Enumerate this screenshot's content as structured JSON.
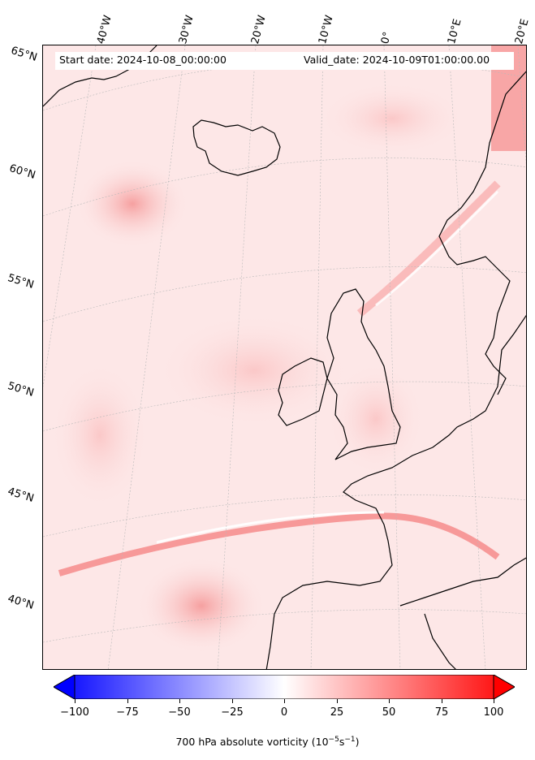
{
  "header": {
    "start_date": "Start date: 2024-10-08_00:00:00",
    "valid_date": "Valid_date: 2024-10-09T01:00:00.00"
  },
  "lat_labels": [
    "65°N",
    "60°N",
    "55°N",
    "50°N",
    "45°N",
    "40°N"
  ],
  "lon_labels": [
    "40°W",
    "30°W",
    "20°W",
    "10°W",
    "0°",
    "10°E",
    "20°E"
  ],
  "colorbar": {
    "min": -100,
    "max": 100,
    "ticks": [
      "−100",
      "−75",
      "−50",
      "−25",
      "0",
      "25",
      "50",
      "75",
      "100"
    ],
    "label_prefix": "700 hPa absolute vorticity (10",
    "label_unit_exp1": "−5",
    "label_mid": "s",
    "label_unit_exp2": "−1",
    "label_suffix": ")",
    "low_color": "#0000ff",
    "mid_color": "#ffffff",
    "high_color": "#ff0000"
  }
}
